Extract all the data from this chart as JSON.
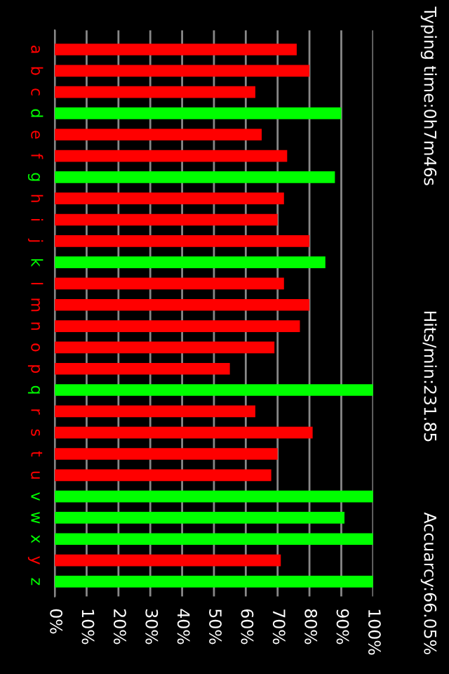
{
  "chart_data": {
    "type": "bar",
    "orientation": "horizontal",
    "categories": [
      "a",
      "b",
      "c",
      "d",
      "e",
      "f",
      "g",
      "h",
      "i",
      "j",
      "k",
      "l",
      "m",
      "n",
      "o",
      "p",
      "q",
      "r",
      "s",
      "t",
      "u",
      "v",
      "w",
      "x",
      "y",
      "z"
    ],
    "values": [
      76,
      80,
      63,
      90,
      65,
      73,
      88,
      72,
      70,
      80,
      85,
      72,
      80,
      77,
      69,
      55,
      100,
      63,
      81,
      70,
      68,
      100,
      91,
      100,
      71,
      100
    ],
    "colors": [
      "#ff0000",
      "#ff0000",
      "#ff0000",
      "#00ff00",
      "#ff0000",
      "#ff0000",
      "#00ff00",
      "#ff0000",
      "#ff0000",
      "#ff0000",
      "#00ff00",
      "#ff0000",
      "#ff0000",
      "#ff0000",
      "#ff0000",
      "#ff0000",
      "#00ff00",
      "#ff0000",
      "#ff0000",
      "#ff0000",
      "#ff0000",
      "#00ff00",
      "#00ff00",
      "#00ff00",
      "#ff0000",
      "#00ff00"
    ],
    "xlim": [
      0,
      100
    ],
    "xticks": [
      {
        "value": 0,
        "label": "0%"
      },
      {
        "value": 10,
        "label": "10%"
      },
      {
        "value": 20,
        "label": "20%"
      },
      {
        "value": 30,
        "label": "30%"
      },
      {
        "value": 40,
        "label": "40%"
      },
      {
        "value": 50,
        "label": "50%"
      },
      {
        "value": 60,
        "label": "60%"
      },
      {
        "value": 70,
        "label": "70%"
      },
      {
        "value": 80,
        "label": "80%"
      },
      {
        "value": 90,
        "label": "90%"
      },
      {
        "value": 100,
        "label": "100%"
      }
    ],
    "grid": "x",
    "annotations": [
      "Typing time:0h7m46s",
      "Hits/min:231.85",
      "Accuarcy:66.05%"
    ]
  }
}
